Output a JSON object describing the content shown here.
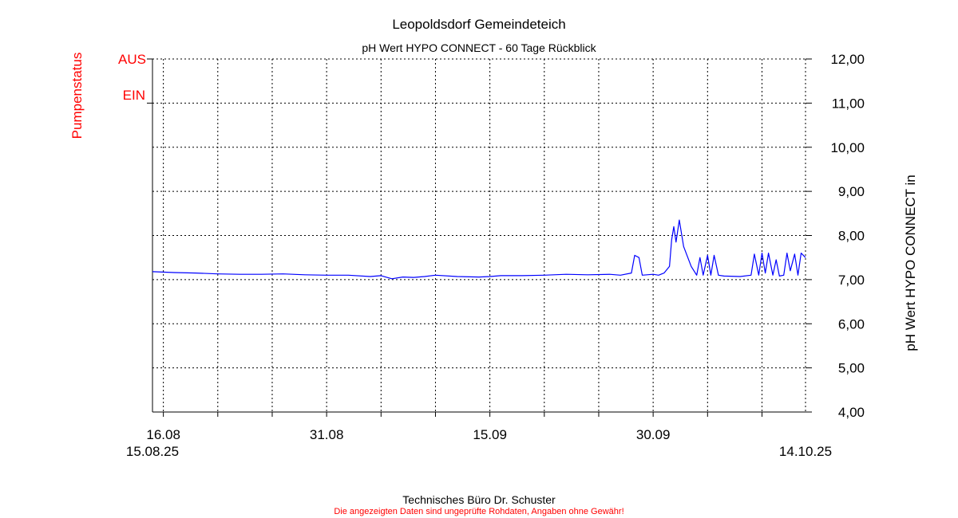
{
  "chart_data": {
    "type": "line",
    "title": "Leopoldsdorf Gemeindeteich",
    "subtitle": "pH Wert HYPO CONNECT - 60 Tage Rückblick",
    "ylabel_right": "pH Wert HYPO CONNECT in",
    "ylabel_left": "Pumpenstatus",
    "pump_status_labels": [
      "AUS",
      "EIN"
    ],
    "ylim": [
      4,
      12
    ],
    "y_ticks": [
      "12,00",
      "11,00",
      "10,00",
      "9,00",
      "8,00",
      "7,00",
      "6,00",
      "5,00",
      "4,00"
    ],
    "x_start_label": "15.08.25",
    "x_end_label": "14.10.25",
    "x_tick_labels": [
      "16.08",
      "31.08",
      "15.09",
      "30.09"
    ],
    "x_days_range": [
      0,
      60
    ],
    "grid": true,
    "series": [
      {
        "color": "#0000ff",
        "x": [
          0,
          2,
          4,
          6,
          8,
          10,
          12,
          14,
          16,
          18,
          20,
          21,
          22,
          23,
          24,
          25,
          26,
          28,
          30,
          31,
          32,
          34,
          36,
          38,
          40,
          42,
          43,
          44,
          44.3,
          44.7,
          45,
          46,
          46.5,
          47,
          47.5,
          47.7,
          47.9,
          48.1,
          48.4,
          48.8,
          49.5,
          50,
          50.3,
          50.6,
          51,
          51.3,
          51.6,
          52,
          52.5,
          54,
          55,
          55.3,
          55.7,
          56,
          56.3,
          56.6,
          57,
          57.3,
          57.6,
          58,
          58.3,
          58.6,
          59,
          59.3,
          59.6,
          60
        ],
        "values": [
          7.18,
          7.16,
          7.15,
          7.13,
          7.12,
          7.12,
          7.13,
          7.11,
          7.1,
          7.1,
          7.07,
          7.09,
          7.02,
          7.06,
          7.05,
          7.07,
          7.1,
          7.07,
          7.06,
          7.07,
          7.09,
          7.09,
          7.1,
          7.12,
          7.11,
          7.12,
          7.1,
          7.15,
          7.55,
          7.5,
          7.1,
          7.12,
          7.1,
          7.15,
          7.3,
          7.9,
          8.2,
          7.85,
          8.35,
          7.75,
          7.3,
          7.1,
          7.5,
          7.1,
          7.55,
          7.1,
          7.55,
          7.1,
          7.08,
          7.07,
          7.1,
          7.58,
          7.1,
          7.6,
          7.15,
          7.6,
          7.1,
          7.45,
          7.08,
          7.1,
          7.6,
          7.2,
          7.58,
          7.1,
          7.6,
          7.5
        ]
      }
    ]
  },
  "footer": {
    "line1": "Technisches Büro Dr. Schuster",
    "line2": "Die angezeigten Daten sind ungeprüfte Rohdaten, Angaben ohne Gewähr!"
  }
}
